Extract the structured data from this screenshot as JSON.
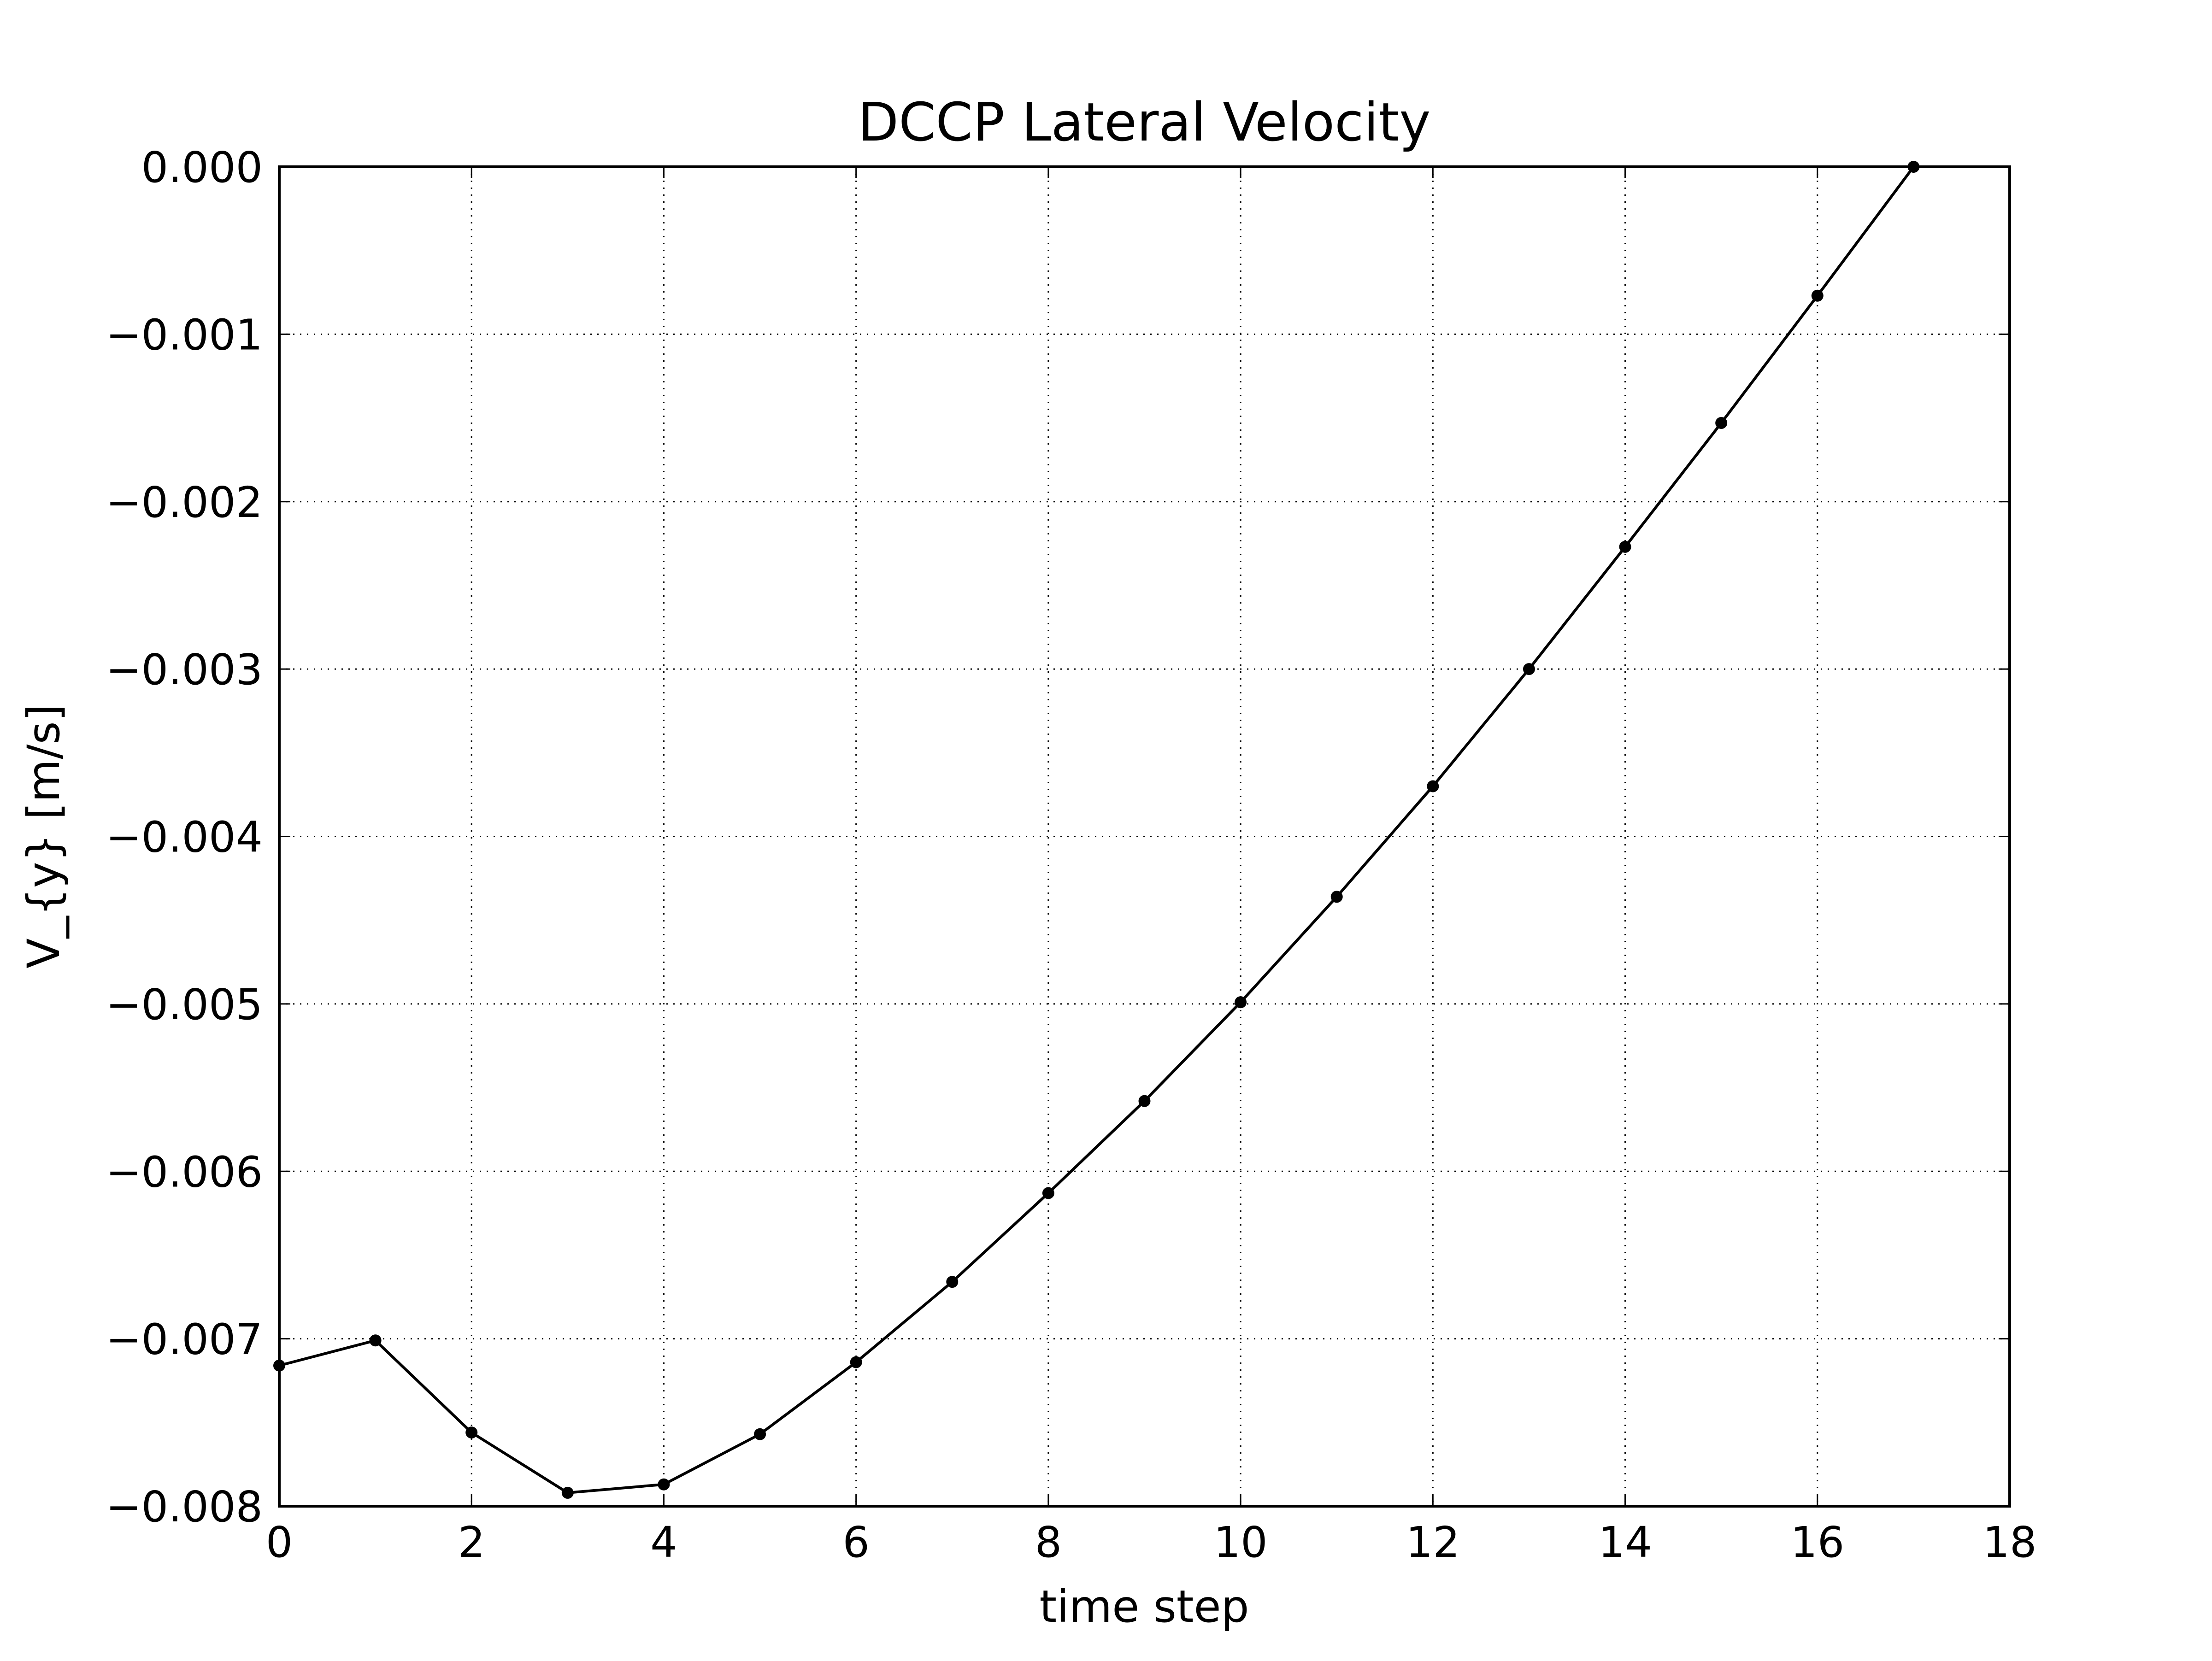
{
  "chart_data": {
    "type": "line",
    "title": "DCCP Lateral Velocity",
    "xlabel": "time step",
    "ylabel": "V_{y} [m/s]",
    "xlim": [
      0,
      18
    ],
    "ylim": [
      -0.008,
      0.0
    ],
    "x_ticks": [
      0,
      2,
      4,
      6,
      8,
      10,
      12,
      14,
      16,
      18
    ],
    "x_tick_labels": [
      "0",
      "2",
      "4",
      "6",
      "8",
      "10",
      "12",
      "14",
      "16",
      "18"
    ],
    "y_ticks": [
      0.0,
      -0.001,
      -0.002,
      -0.003,
      -0.004,
      -0.005,
      -0.006,
      -0.007,
      -0.008
    ],
    "y_tick_labels": [
      "0.000",
      "−0.001",
      "−0.002",
      "−0.003",
      "−0.004",
      "−0.005",
      "−0.006",
      "−0.007",
      "−0.008"
    ],
    "grid": true,
    "series": [
      {
        "color": "#000000",
        "marker": "circle",
        "x": [
          0,
          1,
          2,
          3,
          4,
          5,
          6,
          7,
          8,
          9,
          10,
          11,
          12,
          13,
          14,
          15,
          16,
          17
        ],
        "y": [
          -0.00716,
          -0.00701,
          -0.00756,
          -0.00792,
          -0.00787,
          -0.00757,
          -0.00714,
          -0.00666,
          -0.00613,
          -0.00558,
          -0.00499,
          -0.00436,
          -0.0037,
          -0.003,
          -0.00227,
          -0.00153,
          -0.00077,
          0.0
        ]
      }
    ]
  }
}
